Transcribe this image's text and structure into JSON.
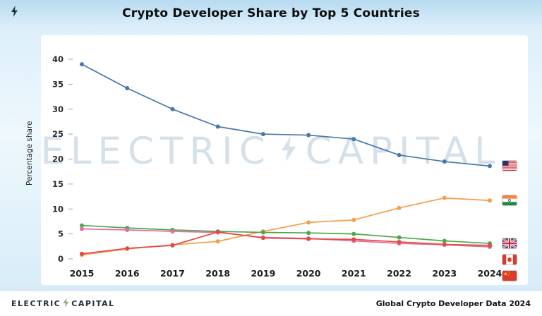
{
  "page": {
    "title": "Crypto Developer Share by Top 5 Countries"
  },
  "watermark": {
    "left": "ELECTRIC",
    "right": "CAPITAL"
  },
  "footer": {
    "brand_left": "ELECTRIC",
    "brand_right": "CAPITAL",
    "right_text": "Global Crypto Developer Data 2024"
  },
  "chart_data": {
    "type": "line",
    "title": "Crypto Developer Share by Top 5 Countries",
    "xlabel": "",
    "ylabel": "Percentage share",
    "x": [
      2015,
      2016,
      2017,
      2018,
      2019,
      2020,
      2021,
      2022,
      2023,
      2024
    ],
    "yticks": [
      0,
      5,
      10,
      15,
      20,
      25,
      30,
      35,
      40
    ],
    "ylim": [
      0,
      43
    ],
    "grid": false,
    "legend_position": "right-flags",
    "series": [
      {
        "name": "United States",
        "flag": "us-flag-icon",
        "color": "#4878a8",
        "values": [
          39.0,
          34.2,
          30.0,
          26.5,
          25.0,
          24.8,
          24.0,
          20.8,
          19.5,
          18.6
        ]
      },
      {
        "name": "India",
        "flag": "india-flag-icon",
        "color": "#f89c47",
        "values": [
          0.8,
          2.0,
          2.8,
          3.5,
          5.5,
          7.3,
          7.8,
          10.2,
          12.2,
          11.7
        ]
      },
      {
        "name": "United Kingdom",
        "flag": "uk-flag-icon",
        "color": "#4ca64c",
        "values": [
          6.7,
          6.2,
          5.8,
          5.5,
          5.3,
          5.2,
          5.0,
          4.3,
          3.6,
          3.1
        ]
      },
      {
        "name": "Canada",
        "flag": "canada-flag-icon",
        "color": "#e26d9e",
        "values": [
          6.0,
          5.8,
          5.5,
          5.3,
          4.3,
          4.1,
          3.6,
          3.1,
          2.8,
          2.4
        ]
      },
      {
        "name": "China",
        "flag": "china-flag-icon",
        "color": "#e14b44",
        "values": [
          1.0,
          2.1,
          2.7,
          5.4,
          4.2,
          4.0,
          3.9,
          3.4,
          2.9,
          2.7
        ]
      }
    ]
  }
}
